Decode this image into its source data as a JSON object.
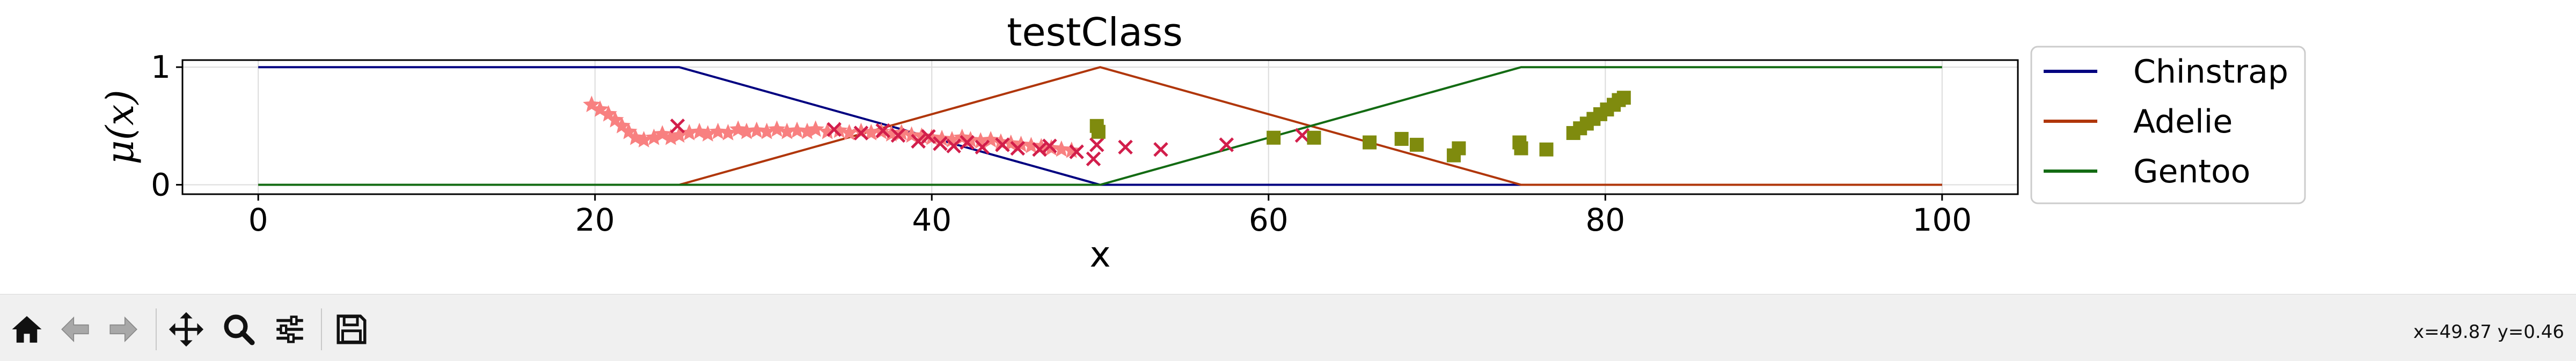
{
  "chart_data": {
    "type": "line",
    "title": "testClass",
    "xlabel": "x",
    "ylabel": "μ(x)",
    "xlim": [
      -4.5,
      104.5
    ],
    "ylim": [
      -0.08,
      1.06
    ],
    "xticks": [
      0,
      20,
      40,
      60,
      80,
      100
    ],
    "yticks": [
      0,
      1
    ],
    "grid": true,
    "legend_position": "right-outside",
    "series": [
      {
        "name": "Chinstrap",
        "color": "#000080",
        "x": [
          0,
          25,
          50,
          75,
          100
        ],
        "y": [
          1,
          1,
          0,
          0,
          0
        ]
      },
      {
        "name": "Adelie",
        "color": "#b0360a",
        "x": [
          0,
          25,
          50,
          75,
          100
        ],
        "y": [
          0,
          0,
          1,
          0,
          0
        ]
      },
      {
        "name": "Gentoo",
        "color": "#136b13",
        "x": [
          0,
          25,
          50,
          75,
          100
        ],
        "y": [
          0,
          0,
          0,
          1,
          1
        ]
      }
    ],
    "scatter": [
      {
        "marker": "star",
        "color": "#f88080",
        "points": [
          [
            19.8,
            0.68
          ],
          [
            20.3,
            0.64
          ],
          [
            20.8,
            0.6
          ],
          [
            21.2,
            0.55
          ],
          [
            21.6,
            0.5
          ],
          [
            22.0,
            0.45
          ],
          [
            22.4,
            0.4
          ],
          [
            22.9,
            0.38
          ],
          [
            23.5,
            0.4
          ],
          [
            24.0,
            0.43
          ],
          [
            24.5,
            0.4
          ],
          [
            25.0,
            0.42
          ],
          [
            25.6,
            0.44
          ],
          [
            26.2,
            0.45
          ],
          [
            26.7,
            0.43
          ],
          [
            27.3,
            0.45
          ],
          [
            27.9,
            0.44
          ],
          [
            28.5,
            0.47
          ],
          [
            29.0,
            0.45
          ],
          [
            29.6,
            0.46
          ],
          [
            30.2,
            0.45
          ],
          [
            30.8,
            0.47
          ],
          [
            31.4,
            0.45
          ],
          [
            32.0,
            0.46
          ],
          [
            32.6,
            0.45
          ],
          [
            33.1,
            0.47
          ],
          [
            33.8,
            0.45
          ],
          [
            34.5,
            0.46
          ],
          [
            35.1,
            0.44
          ],
          [
            35.8,
            0.45
          ],
          [
            36.4,
            0.44
          ],
          [
            37.0,
            0.45
          ],
          [
            37.6,
            0.43
          ],
          [
            38.2,
            0.44
          ],
          [
            38.8,
            0.42
          ],
          [
            39.4,
            0.41
          ],
          [
            40.0,
            0.4
          ],
          [
            40.6,
            0.39
          ],
          [
            41.2,
            0.38
          ],
          [
            41.8,
            0.4
          ],
          [
            42.3,
            0.38
          ],
          [
            42.9,
            0.37
          ],
          [
            43.5,
            0.38
          ],
          [
            44.1,
            0.36
          ],
          [
            44.7,
            0.35
          ],
          [
            45.3,
            0.34
          ],
          [
            45.9,
            0.33
          ],
          [
            46.5,
            0.32
          ],
          [
            47.1,
            0.31
          ],
          [
            47.7,
            0.3
          ],
          [
            48.3,
            0.29
          ]
        ]
      },
      {
        "marker": "x",
        "color": "#d21e4b",
        "points": [
          [
            24.9,
            0.5
          ],
          [
            34.2,
            0.47
          ],
          [
            35.8,
            0.44
          ],
          [
            37.1,
            0.46
          ],
          [
            38.0,
            0.42
          ],
          [
            39.2,
            0.37
          ],
          [
            39.8,
            0.41
          ],
          [
            40.5,
            0.35
          ],
          [
            41.3,
            0.33
          ],
          [
            42.1,
            0.36
          ],
          [
            43.0,
            0.32
          ],
          [
            44.2,
            0.34
          ],
          [
            45.1,
            0.31
          ],
          [
            46.4,
            0.3
          ],
          [
            47.0,
            0.33
          ],
          [
            48.6,
            0.28
          ],
          [
            49.6,
            0.22
          ],
          [
            49.8,
            0.34
          ],
          [
            51.5,
            0.32
          ],
          [
            53.6,
            0.3
          ],
          [
            57.5,
            0.34
          ],
          [
            62.0,
            0.42
          ]
        ]
      },
      {
        "marker": "square",
        "color": "#7f8b0e",
        "points": [
          [
            49.8,
            0.5
          ],
          [
            49.9,
            0.45
          ],
          [
            60.3,
            0.4
          ],
          [
            62.7,
            0.4
          ],
          [
            66.0,
            0.36
          ],
          [
            67.9,
            0.39
          ],
          [
            68.8,
            0.34
          ],
          [
            71.0,
            0.25
          ],
          [
            71.3,
            0.31
          ],
          [
            74.9,
            0.36
          ],
          [
            75.0,
            0.31
          ],
          [
            76.5,
            0.3
          ],
          [
            78.1,
            0.44
          ],
          [
            78.5,
            0.48
          ],
          [
            78.9,
            0.52
          ],
          [
            79.3,
            0.56
          ],
          [
            79.7,
            0.6
          ],
          [
            80.1,
            0.64
          ],
          [
            80.5,
            0.68
          ],
          [
            80.8,
            0.72
          ],
          [
            81.1,
            0.74
          ]
        ]
      }
    ]
  },
  "toolbar": {
    "buttons": [
      {
        "name": "home-button",
        "icon": "home-icon"
      },
      {
        "name": "back-button",
        "icon": "arrow-left-icon"
      },
      {
        "name": "forward-button",
        "icon": "arrow-right-icon"
      },
      {
        "name": "pan-button",
        "icon": "move-icon"
      },
      {
        "name": "zoom-button",
        "icon": "magnifier-icon"
      },
      {
        "name": "configure-subplots-button",
        "icon": "sliders-icon"
      },
      {
        "name": "save-button",
        "icon": "floppy-disk-icon"
      }
    ],
    "coords_text": "x=49.87 y=0.46"
  }
}
